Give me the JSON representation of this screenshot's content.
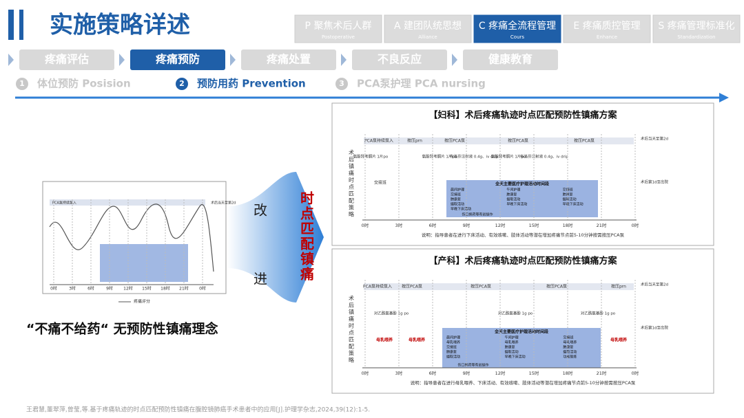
{
  "header": {
    "title": "实施策略详述",
    "tabs": [
      {
        "label": "P 聚焦术后人群",
        "sub": "Postoperative",
        "active": false
      },
      {
        "label": "A 建团队统思想",
        "sub": "Alliance",
        "active": false
      },
      {
        "label": "C 疼痛全流程管理",
        "sub": "Cours",
        "active": true
      },
      {
        "label": "E 疼痛质控管理",
        "sub": "Enhance",
        "active": false
      },
      {
        "label": "S 疼痛管理标准化",
        "sub": "Standardization",
        "active": false
      }
    ]
  },
  "steps": [
    {
      "label": "疼痛评估",
      "active": false
    },
    {
      "label": "疼痛预防",
      "active": true
    },
    {
      "label": "疼痛处置",
      "active": false
    },
    {
      "label": "不良反应",
      "active": false
    },
    {
      "label": "健康教育",
      "active": false
    }
  ],
  "substeps": [
    {
      "num": "1",
      "label": "体位预防 Posision",
      "active": false
    },
    {
      "num": "2",
      "label": "预防用药 Prevention",
      "active": true
    },
    {
      "num": "3",
      "label": "PCA泵护理 PCA nursing",
      "active": false
    }
  ],
  "left_figure": {
    "top_bar": "PCA泵持续泵入",
    "right_label": "术后当天至第2d",
    "legend": "疼痛评分",
    "x_labels": [
      "0时",
      "3时",
      "6时",
      "9时",
      "12时",
      "15时",
      "18时",
      "21时",
      "0时"
    ]
  },
  "left_caption": "“不痛不给药“  无预防性镇痛理念",
  "arrow_text": [
    "改",
    "进"
  ],
  "vertical_text": "时点匹配镇痛",
  "panels": [
    {
      "title": "【妇科】术后疼痛轨迹时点匹配预防性镇痛方案",
      "y_label": "术后镇痛时点匹配策略",
      "top_row": [
        "PCA泵持续泵入",
        "按压prn",
        "按压PCA泵",
        "按压PCA泵",
        "按压PCA泵"
      ],
      "drugs": [
        "氨酚羟考酮片 1片po",
        "布洛芬注射液 0.4g、iv drip",
        "氨酚羟考酮片 1片po",
        "布洛芬注射液 0.4g、iv drip",
        "氨酚羟考酮片 1片po"
      ],
      "extra": [
        "交接班"
      ],
      "right_labels": [
        "术后当天至第2d",
        "术后第1d至出院"
      ],
      "box_title": "全天主要医疗护理活动时间段",
      "box_cols": [
        [
          "晨间护理",
          "交接班",
          "肺康复",
          "摄取活动",
          "早晚下床活动"
        ],
        [
          "午间护理",
          "肺康复",
          "摄取活动",
          "早晚下床活动"
        ],
        [
          "交接班",
          "肺康复",
          "摄取活动",
          "早晚下床活动"
        ]
      ],
      "box_foot": "伤口换药等有创操作",
      "x_labels": [
        "0时",
        "3时",
        "6时",
        "9时",
        "12时",
        "15时",
        "18时",
        "21时",
        "0时"
      ],
      "note": "说明：指导患者在进行下床活动、有效咳嗽、肢体活动等潜在增加疼痛节点前5-10分钟按需按压PCA泵"
    },
    {
      "title": "【产科】术后疼痛轨迹时点匹配预防性镇痛方案",
      "y_label": "术后镇痛时点匹配策略",
      "top_row": [
        "PCA泵持续泵入",
        "按压PCA泵",
        "按压PCA泵",
        "按压PCA泵",
        "按压prn"
      ],
      "drugs": [
        "对乙酰氨基酚 1g po",
        "对乙酰氨基酚 1g po",
        "对乙酰氨基酚 1g po"
      ],
      "extra": [
        "母乳喂养",
        "母乳喂养",
        "母乳喂养"
      ],
      "right_labels": [
        "术后当天至第2d",
        "术后第1d至出院"
      ],
      "box_title": "全天主要医疗护理活动时间段",
      "box_cols": [
        [
          "晨间护理",
          "母乳喂养",
          "交接班",
          "肺康复",
          "摄取活动"
        ],
        [
          "午间护理",
          "母乳喂养",
          "肺康复",
          "摄取活动",
          "早晚下床活动"
        ],
        [
          "交接班",
          "母乳喂养",
          "肺康复",
          "摄取活动",
          "功能锻炼"
        ]
      ],
      "box_foot": "伤口换药等有创操作",
      "x_labels": [
        "0时",
        "3时",
        "6时",
        "9时",
        "12时",
        "15时",
        "18时",
        "21时",
        "0时"
      ],
      "note": "说明：指导患者在进行母乳喂养、下床活动、有效咳嗽、肢体活动等潜在增加疼痛节点前5-10分钟按需按压PCA泵"
    }
  ],
  "citation": "王君慧,董翠萍,曾莹,等.基于疼痛轨迹的时点匹配预防性镇痛在腹腔镜肺癌手术患者中的应用[J].护理学杂志,2024,39(12):1-5."
}
